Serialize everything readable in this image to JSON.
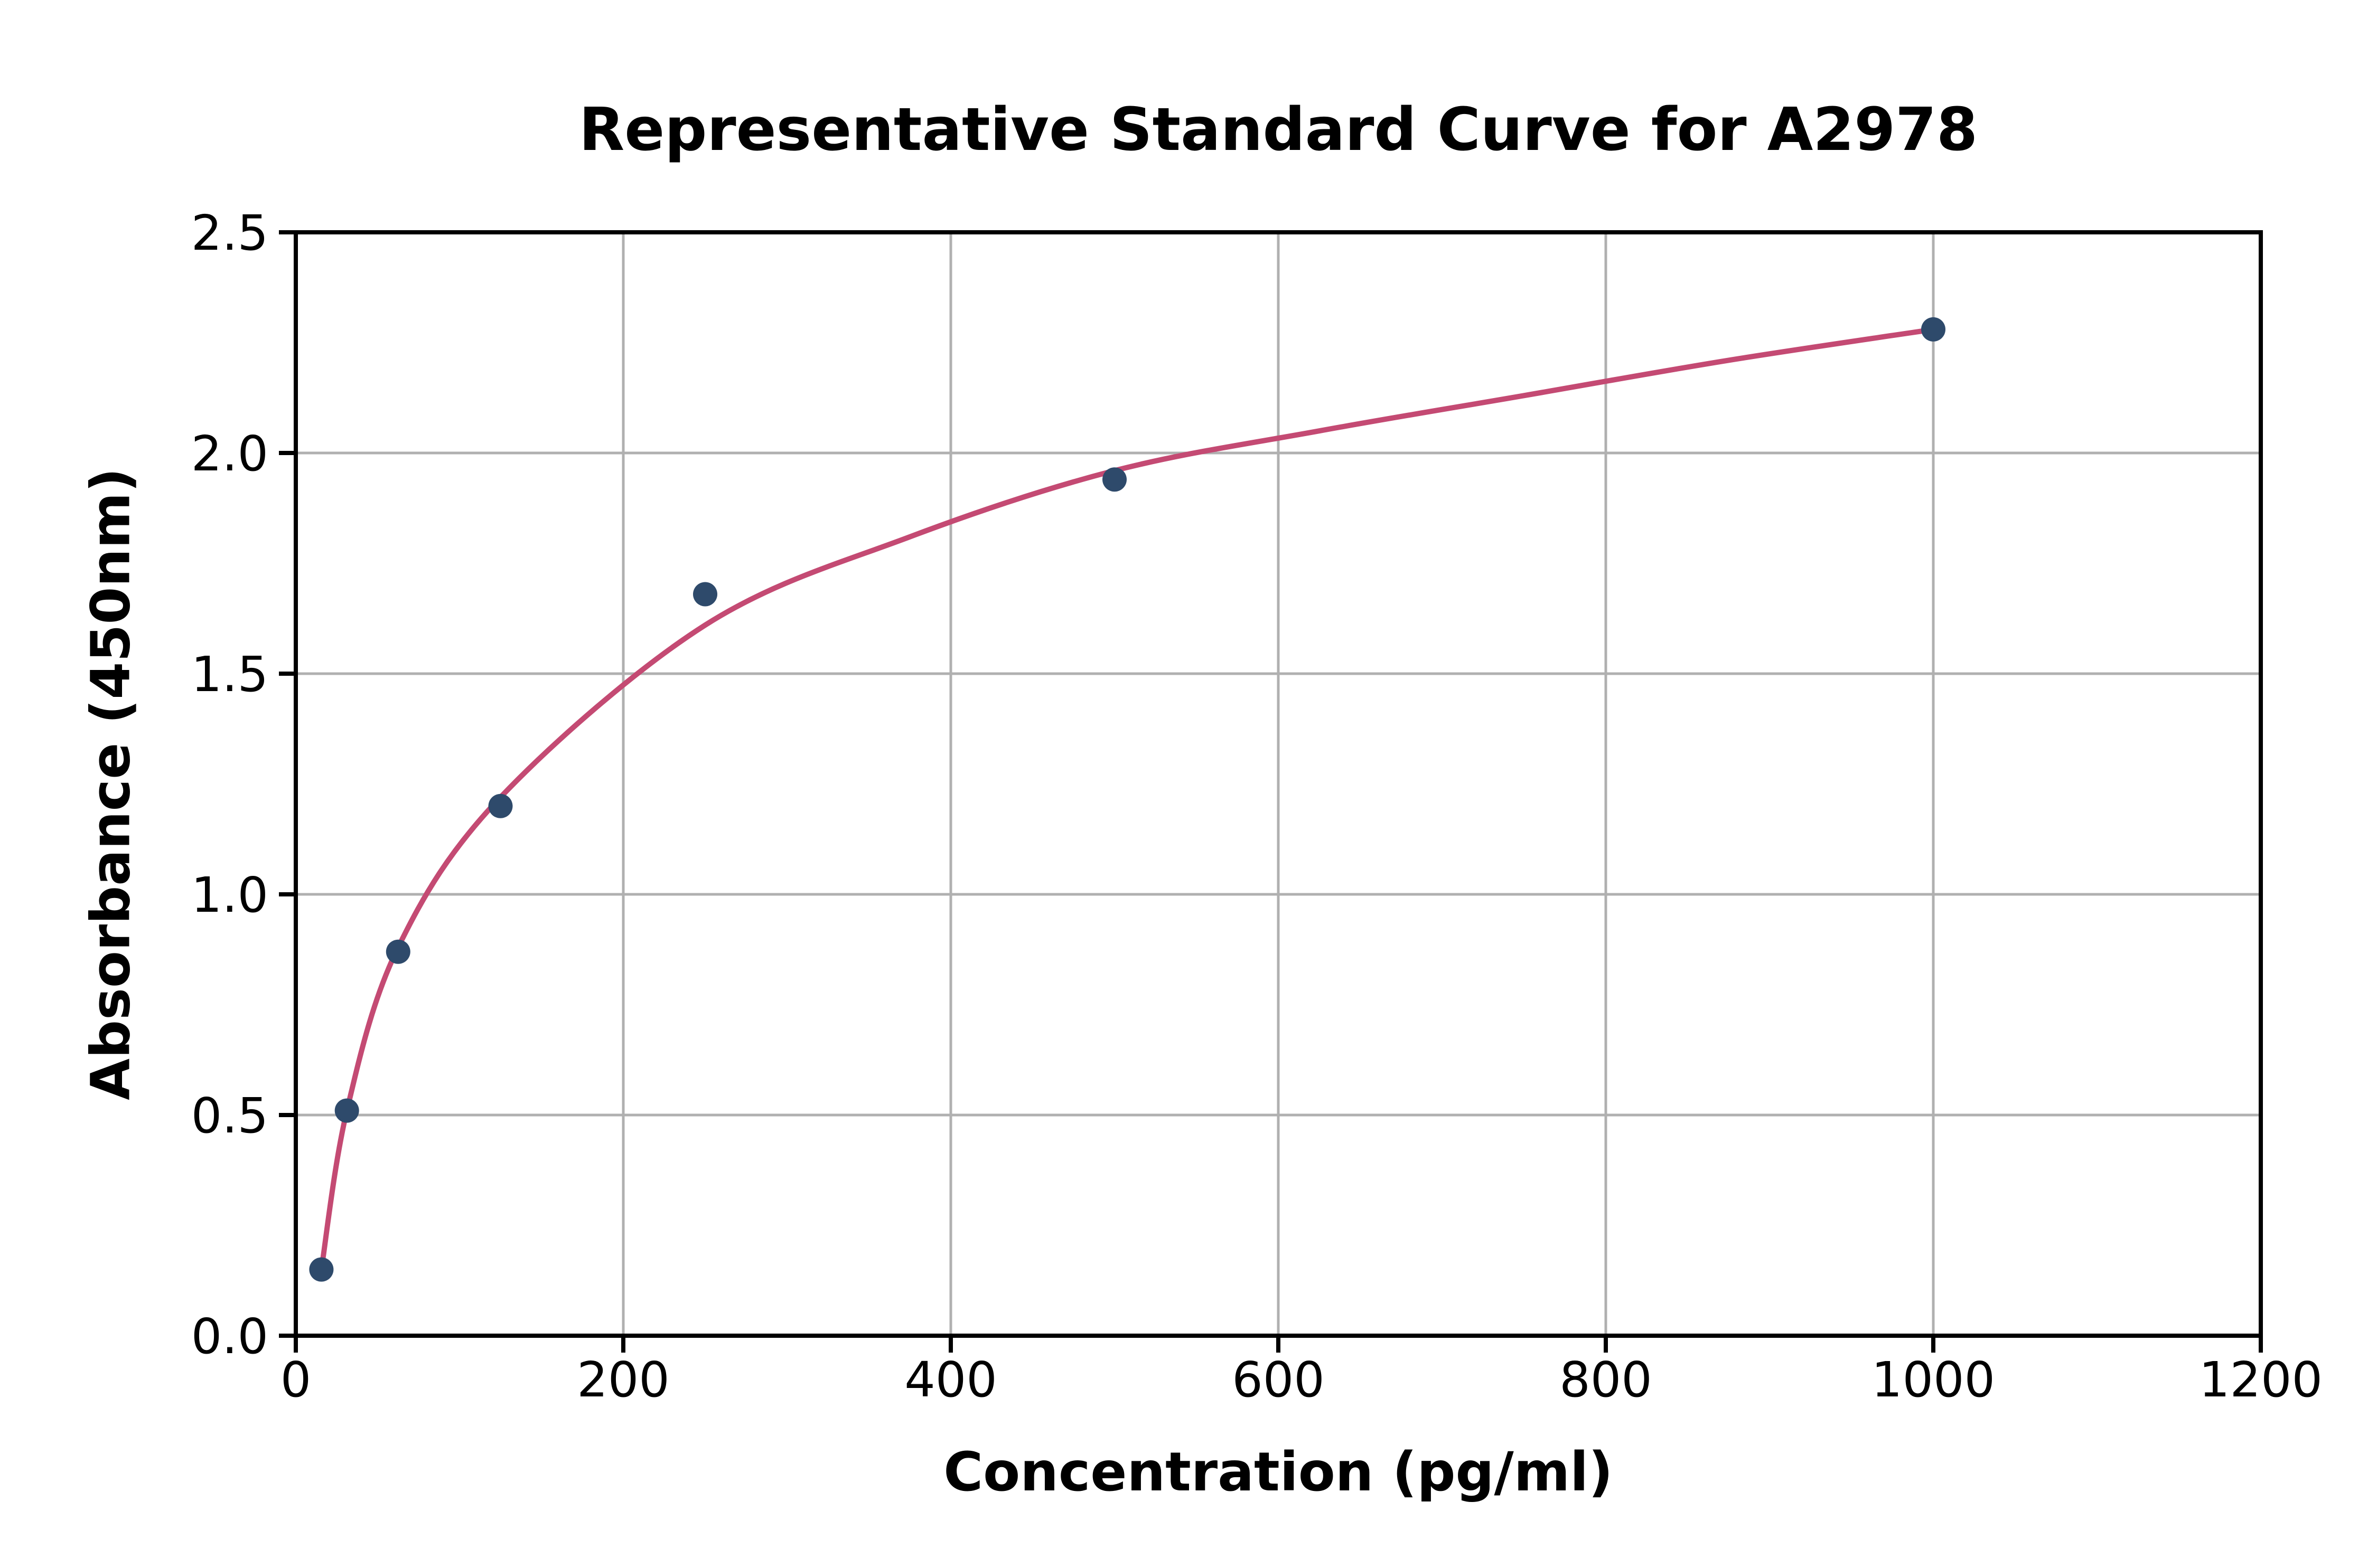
{
  "chart_data": {
    "type": "scatter",
    "title": "Representative Standard Curve for A2978",
    "xlabel": "Concentration (pg/ml)",
    "ylabel": "Absorbance (450nm)",
    "xlim": [
      0,
      1200
    ],
    "ylim": [
      0,
      2.5
    ],
    "x_ticks": [
      0,
      200,
      400,
      600,
      800,
      1000,
      1200
    ],
    "x_tick_labels": [
      "0",
      "200",
      "400",
      "600",
      "800",
      "1000",
      "1200"
    ],
    "y_ticks": [
      0,
      0.5,
      1.0,
      1.5,
      2.0,
      2.5
    ],
    "y_tick_labels": [
      "0.0",
      "0.5",
      "1.0",
      "1.5",
      "2.0",
      "2.5"
    ],
    "grid": true,
    "legend": "none",
    "series": [
      {
        "name": "standard-points",
        "type": "scatter",
        "color": "#2e4a6b",
        "x": [
          15.6,
          31.2,
          62.5,
          125,
          250,
          500,
          1000
        ],
        "y": [
          0.15,
          0.51,
          0.87,
          1.2,
          1.68,
          1.94,
          2.28
        ]
      },
      {
        "name": "fitted-curve",
        "type": "line",
        "color": "#c44a73",
        "x": [
          15.6,
          31.2,
          62.5,
          125,
          250,
          375,
          500,
          625,
          750,
          875,
          1000
        ],
        "y": [
          0.15,
          0.51,
          0.88,
          1.22,
          1.61,
          1.81,
          1.96,
          2.05,
          2.13,
          2.21,
          2.28
        ]
      }
    ],
    "colors": {
      "background": "#ffffff",
      "grid": "#b0b0b0",
      "axis": "#000000",
      "text": "#000000"
    }
  }
}
